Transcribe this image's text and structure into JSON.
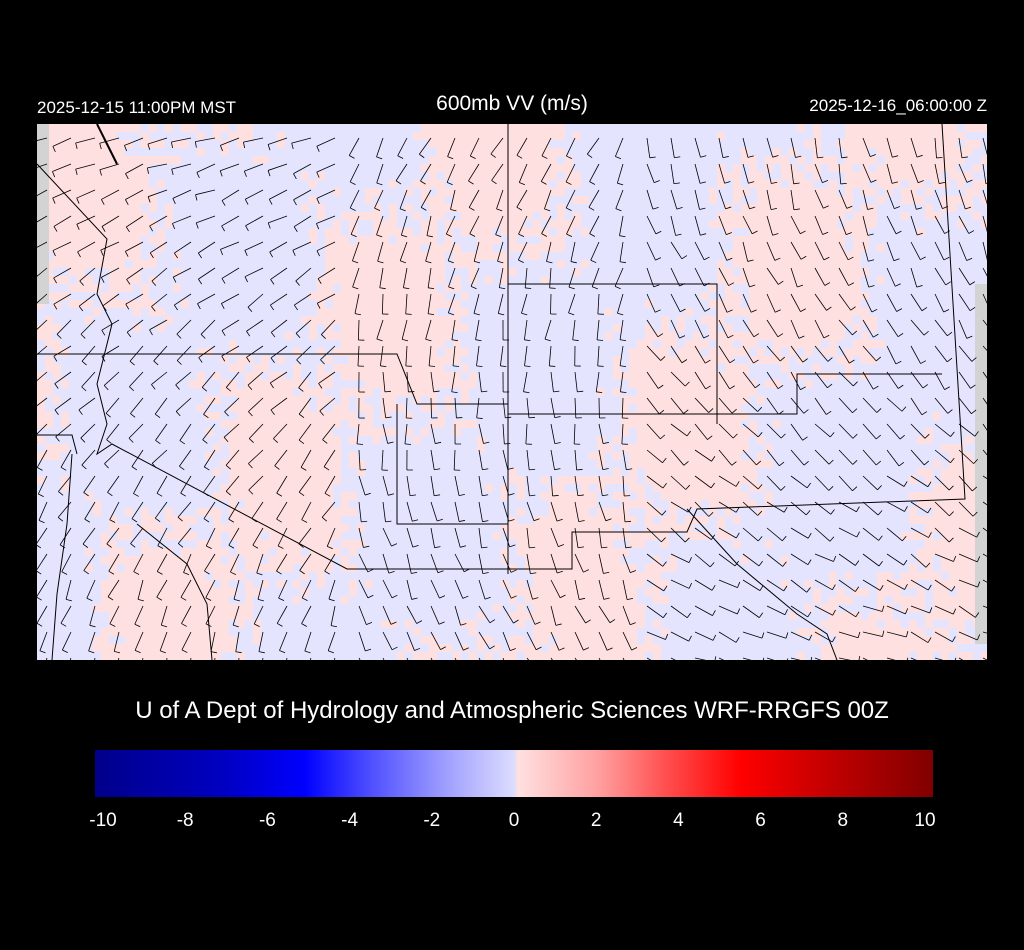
{
  "header": {
    "local_time": "2025-12-15 11:00PM MST",
    "title": "600mb VV (m/s)",
    "valid_time": "2025-12-16_06:00:00 Z"
  },
  "credit": "U of A Dept of Hydrology and Atmospheric Sciences WRF-RRGFS 00Z",
  "colorbar": {
    "min": -10,
    "max": 10,
    "ticks": [
      "-10",
      "-8",
      "-6",
      "-4",
      "-2",
      "0",
      "2",
      "4",
      "6",
      "8",
      "10"
    ],
    "colors": {
      "min": "#00008a",
      "neg": "#0000ff",
      "zero": "#e0e0ff",
      "pos": "#ff0000",
      "max": "#800000"
    }
  },
  "map": {
    "region": "Southwestern United States",
    "field": "600mb vertical velocity with wind barbs",
    "colors": {
      "rising": "#ffe0e0",
      "sinking": "#e0e0ff",
      "no_data": "#d3d3d3",
      "borders": "#000000",
      "contours": "#707080"
    }
  }
}
